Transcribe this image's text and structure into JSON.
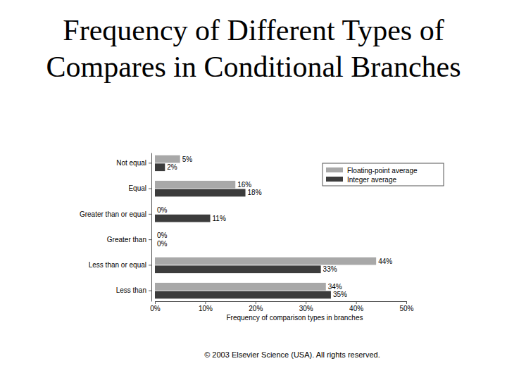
{
  "chart_data": {
    "type": "bar",
    "orientation": "horizontal",
    "title": "Frequency of Different Types of Compares in Conditional Branches",
    "categories": [
      "Not equal",
      "Equal",
      "Greater than or equal",
      "Greater than",
      "Less than or equal",
      "Less than"
    ],
    "series": [
      {
        "name": "Floating-point average",
        "color": "#a8a8a8",
        "values": [
          5,
          16,
          0,
          0,
          44,
          34
        ],
        "value_labels": [
          "5%",
          "16%",
          "0%",
          "0%",
          "44%",
          "34%"
        ]
      },
      {
        "name": "Integer average",
        "color": "#3c3c3c",
        "values": [
          2,
          18,
          11,
          0,
          33,
          35
        ],
        "value_labels": [
          "2%",
          "18%",
          "11%",
          "0%",
          "33%",
          "35%"
        ]
      }
    ],
    "xlim": [
      0,
      50
    ],
    "xticks": [
      {
        "value": 0,
        "label": "0%"
      },
      {
        "value": 10,
        "label": "10%"
      },
      {
        "value": 20,
        "label": "20%"
      },
      {
        "value": 30,
        "label": "30%"
      },
      {
        "value": 40,
        "label": "40%"
      },
      {
        "value": 50,
        "label": "50%"
      }
    ],
    "xlabel": "Frequency of comparison types in branches",
    "annotations": [
      "© 2003 Elsevier Science (USA). All rights reserved."
    ],
    "data_labels": true,
    "legend": "upper right"
  }
}
